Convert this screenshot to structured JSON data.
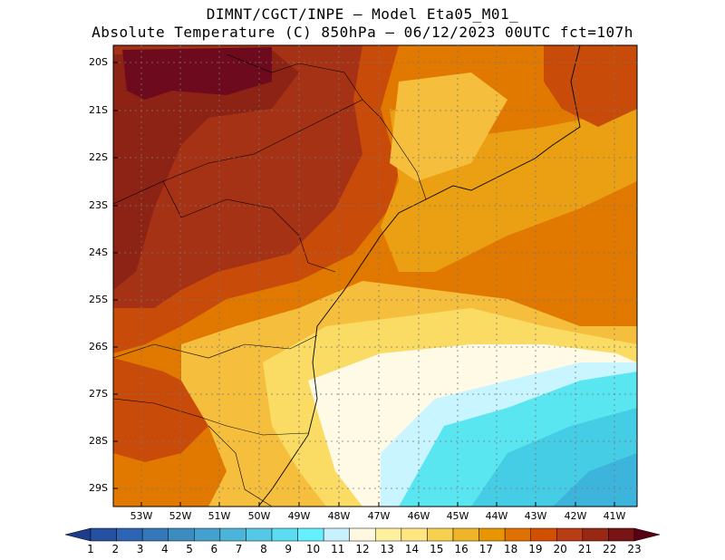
{
  "header": {
    "line1": "DIMNT/CGCT/INPE –  Model Eta05_M01_",
    "line2": "Absolute Temperature (C) 850hPa –  06/12/2023 00UTC fct=107h"
  },
  "axes": {
    "lat_labels": [
      "20S",
      "21S",
      "22S",
      "23S",
      "24S",
      "25S",
      "26S",
      "27S",
      "28S",
      "29S"
    ],
    "lon_labels": [
      "53W",
      "52W",
      "51W",
      "50W",
      "49W",
      "48W",
      "47W",
      "46W",
      "45W",
      "44W",
      "43W",
      "42W",
      "41W"
    ]
  },
  "colorbar": {
    "labels": [
      "1",
      "2",
      "3",
      "4",
      "5",
      "6",
      "7",
      "8",
      "9",
      "10",
      "11",
      "12",
      "13",
      "14",
      "15",
      "16",
      "17",
      "18",
      "19",
      "20",
      "21",
      "22",
      "23"
    ],
    "colors": [
      "#1e3c8c",
      "#2650a0",
      "#2e64b4",
      "#3478b8",
      "#3c8cc0",
      "#44a0cc",
      "#4cb4d8",
      "#54c8e4",
      "#5cdcf0",
      "#64f0ff",
      "#c8f0ff",
      "#fff8e0",
      "#fff0a0",
      "#ffe680",
      "#f8d050",
      "#f0b428",
      "#e89600",
      "#e07000",
      "#d05000",
      "#b83c14",
      "#982814",
      "#781414",
      "#5a0014"
    ]
  },
  "regions": {
    "very_hot": "#6e0a1e",
    "hot": "#8c2314",
    "warm_dark": "#a53214",
    "warm": "#c84b0a",
    "orange": "#e17800",
    "amber": "#eba014",
    "gold": "#f5be3c",
    "yellow": "#fadc64",
    "pale": "#fff5a0",
    "cream": "#fffae6",
    "ice": "#c8f5ff",
    "cyan": "#5ae6f0",
    "teal": "#46cde6",
    "blue": "#3cb4dc"
  }
}
